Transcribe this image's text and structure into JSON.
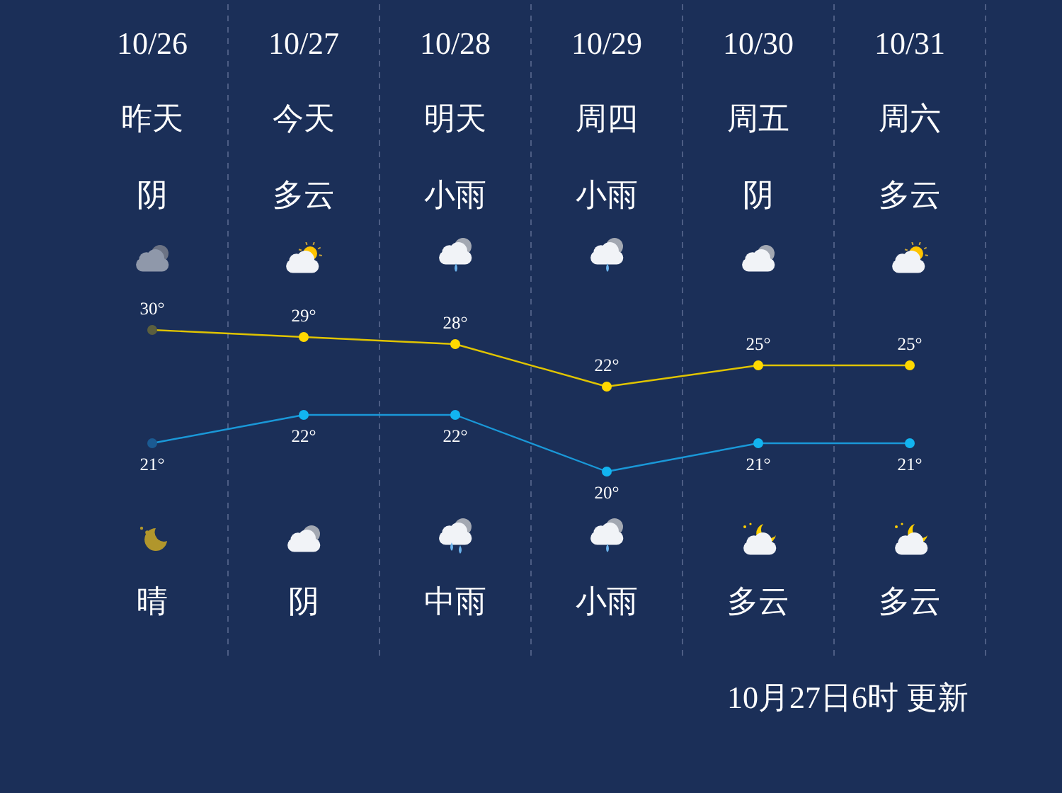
{
  "chart_data": [
    {
      "type": "line",
      "categories": [
        "10/26",
        "10/27",
        "10/28",
        "10/29",
        "10/30",
        "10/31"
      ],
      "series": [
        {
          "color": "#e0c400",
          "colors": [
            "#5b5f3f",
            "#ffd800",
            "#ffd800",
            "#ffd800",
            "#ffd800",
            "#ffd800"
          ],
          "values": [
            30,
            29,
            28,
            22,
            25,
            25
          ],
          "value_labels": [
            "30°",
            "29°",
            "28°",
            "22°",
            "25°",
            "25°"
          ]
        }
      ],
      "ylim": [
        20,
        76
      ],
      "tick_labels": "x",
      "grid": "x",
      "marker": "circle",
      "annotations": [
        "昨天",
        "今天",
        "明天",
        "周四",
        "周五",
        "周六",
        "阴",
        "多云",
        "小雨",
        "小雨",
        "阴",
        "多云"
      ]
    },
    {
      "type": "line",
      "categories": [
        null,
        null,
        null,
        null,
        null,
        null
      ],
      "series": [
        {
          "color": "#1a98d8",
          "colors": [
            "#1b5a92",
            "#12b4f0",
            "#12b4f0",
            "#12b4f0",
            "#12b4f0",
            "#12b4f0"
          ],
          "values": [
            21,
            22,
            22,
            20,
            21,
            21
          ],
          "value_labels": [
            "21°",
            "22°",
            "22°",
            "20°",
            "21°",
            "21°"
          ]
        }
      ],
      "ylim": [
        13.5,
        22.5
      ],
      "grid": "x",
      "marker": "circle",
      "annotations": [
        "晴",
        "阴",
        "中雨",
        "小雨",
        "多云",
        "多云",
        "10月27日6时 更新"
      ]
    }
  ]
}
